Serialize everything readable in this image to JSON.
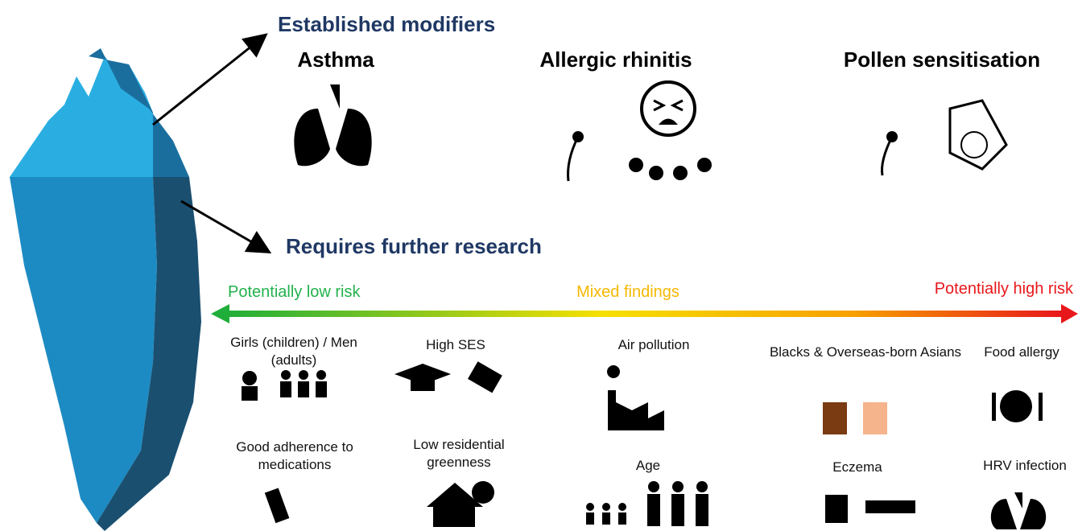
{
  "established": {
    "heading": "Established modifiers",
    "items": [
      "Asthma",
      "Allergic rhinitis",
      "Pollen sensitisation"
    ]
  },
  "research": {
    "heading": "Requires further research",
    "scale": {
      "low": "Potentially low risk",
      "mixed": "Mixed findings",
      "high": "Potentially high risk"
    },
    "factors": [
      "Girls (children) / Men (adults)",
      "High SES",
      "Air pollution",
      "Blacks & Overseas-born Asians",
      "Food allergy",
      "Good adherence to medications",
      "Low residential greenness",
      "Age",
      "Eczema",
      "HRV infection"
    ]
  }
}
